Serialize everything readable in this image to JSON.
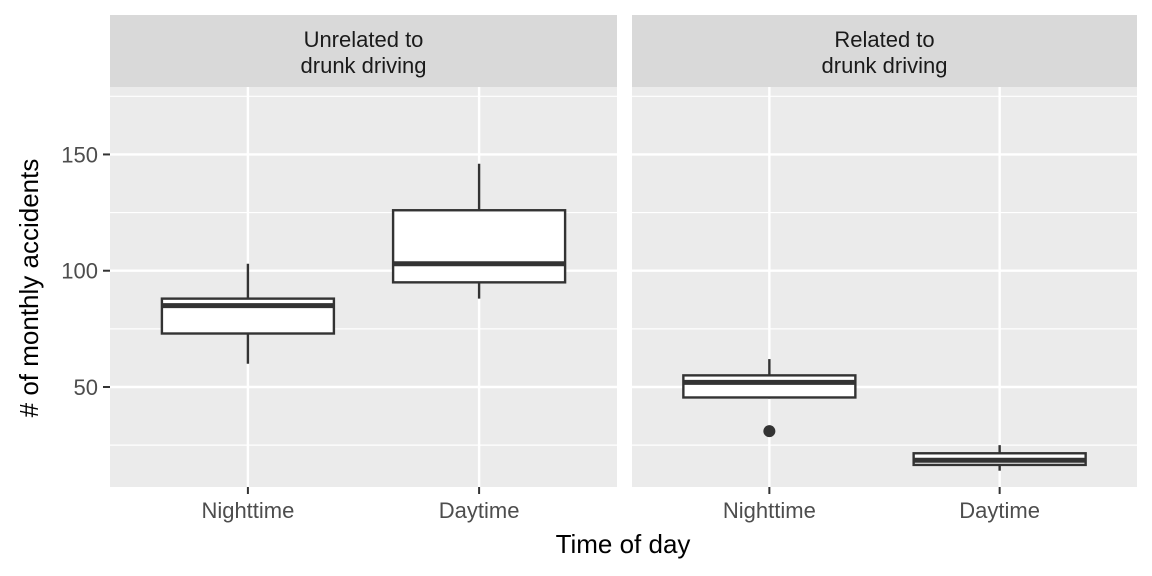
{
  "chart_data": {
    "type": "boxplot",
    "xlabel": "Time of day",
    "ylabel": "# of monthly accidents",
    "ylim": [
      7,
      179
    ],
    "yticks": [
      50,
      100,
      150
    ],
    "categories": [
      "Nighttime",
      "Daytime"
    ],
    "grid": true,
    "colors": {
      "panel_bg": "#ebebeb",
      "strip_bg": "#d9d9d9",
      "grid": "#ffffff",
      "box_fill": "#ffffff",
      "box_line": "#333333",
      "tick_text": "#4d4d4d",
      "title_text": "#000000"
    },
    "panels": [
      {
        "strip_label": [
          "Unrelated to",
          "drunk driving"
        ],
        "boxes": [
          {
            "category": "Nighttime",
            "lower_whisker": 60,
            "q1": 73,
            "median": 85,
            "q3": 88,
            "upper_whisker": 103,
            "outliers": []
          },
          {
            "category": "Daytime",
            "lower_whisker": 88,
            "q1": 95,
            "median": 103,
            "q3": 126,
            "upper_whisker": 146,
            "outliers": []
          }
        ]
      },
      {
        "strip_label": [
          "Related to",
          "drunk driving"
        ],
        "boxes": [
          {
            "category": "Nighttime",
            "lower_whisker": 45,
            "q1": 45.5,
            "median": 52,
            "q3": 55,
            "upper_whisker": 62,
            "outliers": [
              31
            ]
          },
          {
            "category": "Daytime",
            "lower_whisker": 14,
            "q1": 16.5,
            "median": 18.5,
            "q3": 21.5,
            "upper_whisker": 25,
            "outliers": []
          }
        ]
      }
    ]
  }
}
